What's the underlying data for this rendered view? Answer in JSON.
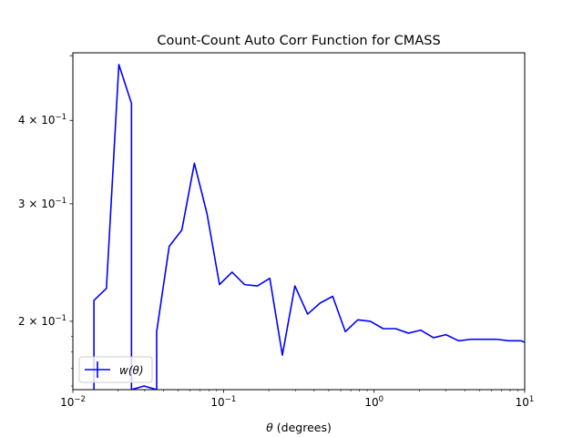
{
  "chart_data": {
    "type": "line",
    "title": "Count-Count Auto Corr Function for CMASS",
    "xlabel": "θ (degrees)",
    "ylabel": "",
    "xscale": "log",
    "yscale": "log",
    "xlim": [
      0.01,
      10
    ],
    "ylim": [
      0.158,
      0.505
    ],
    "grid": false,
    "legend_position": "lower-left",
    "x_tick_labels": [
      {
        "value": 0.01,
        "base": "10",
        "exp": "−2"
      },
      {
        "value": 0.1,
        "base": "10",
        "exp": "−1"
      },
      {
        "value": 1,
        "base": "10",
        "exp": "0"
      },
      {
        "value": 10,
        "base": "10",
        "exp": "1"
      }
    ],
    "y_tick_labels": [
      {
        "value": 0.2,
        "mant": "2",
        "base": "10",
        "exp": "−1"
      },
      {
        "value": 0.3,
        "mant": "3",
        "base": "10",
        "exp": "−1"
      },
      {
        "value": 0.4,
        "mant": "4",
        "base": "10",
        "exp": "−1"
      }
    ],
    "series": [
      {
        "name": "w(θ)",
        "color": "#0000ff",
        "x": [
          0.0138,
          0.0138,
          0.0167,
          0.0202,
          0.0245,
          0.0245,
          0.0297,
          0.036,
          0.036,
          0.0436,
          0.0529,
          0.0641,
          0.0777,
          0.0941,
          0.114,
          0.138,
          0.168,
          0.203,
          0.246,
          0.298,
          0.362,
          0.438,
          0.531,
          0.644,
          0.78,
          0.945,
          1.15,
          1.39,
          1.69,
          2.04,
          2.48,
          3.0,
          3.64,
          4.41,
          5.34,
          6.47,
          7.84,
          9.5,
          10
        ],
        "y": [
          0.158,
          0.215,
          0.224,
          0.485,
          0.424,
          0.158,
          0.16,
          0.158,
          0.193,
          0.259,
          0.274,
          0.345,
          0.29,
          0.227,
          0.237,
          0.227,
          0.226,
          0.232,
          0.178,
          0.226,
          0.205,
          0.213,
          0.218,
          0.193,
          0.201,
          0.2,
          0.195,
          0.195,
          0.192,
          0.194,
          0.189,
          0.191,
          0.187,
          0.188,
          0.188,
          0.188,
          0.187,
          0.187,
          0.186
        ]
      }
    ]
  }
}
